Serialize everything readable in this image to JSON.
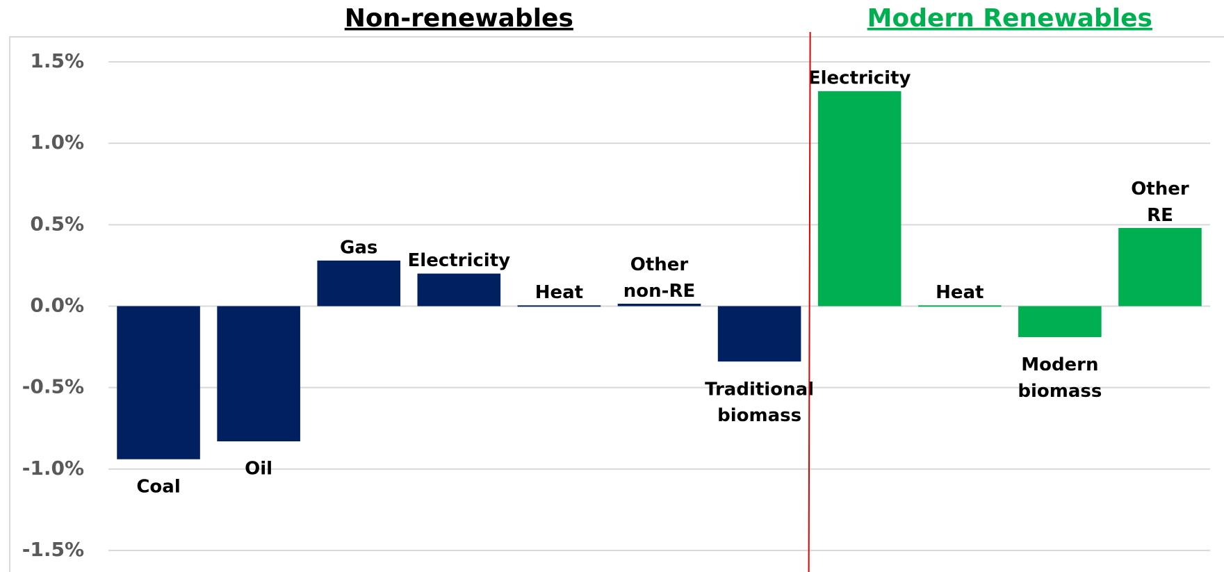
{
  "chart_data": {
    "type": "bar",
    "categories": [
      "Coal",
      "Oil",
      "Gas",
      "Electricity",
      "Heat",
      "Other non-RE",
      "Traditional biomass",
      "Electricity",
      "Heat",
      "Modern biomass",
      "Other RE"
    ],
    "series": [
      {
        "name": "Non-renewables",
        "color": "#002060",
        "values": [
          -0.94,
          -0.83,
          0.28,
          0.2,
          0.005,
          0.015,
          -0.34,
          null,
          null,
          null,
          null
        ]
      },
      {
        "name": "Modern Renewables",
        "color": "#00b050",
        "values": [
          null,
          null,
          null,
          null,
          null,
          null,
          null,
          1.32,
          0.005,
          -0.19,
          0.48
        ]
      }
    ],
    "ylim": [
      -1.5,
      1.5
    ],
    "yticks": [
      {
        "value": 1.5,
        "label": "1.5%"
      },
      {
        "value": 1.0,
        "label": "1.0%"
      },
      {
        "value": 0.5,
        "label": "0.5%"
      },
      {
        "value": 0.0,
        "label": "0.0%"
      },
      {
        "value": -0.5,
        "label": "-0.5%"
      },
      {
        "value": -1.0,
        "label": "-1.0%"
      },
      {
        "value": -1.5,
        "label": "-1.5%"
      }
    ],
    "grid": true
  }
}
